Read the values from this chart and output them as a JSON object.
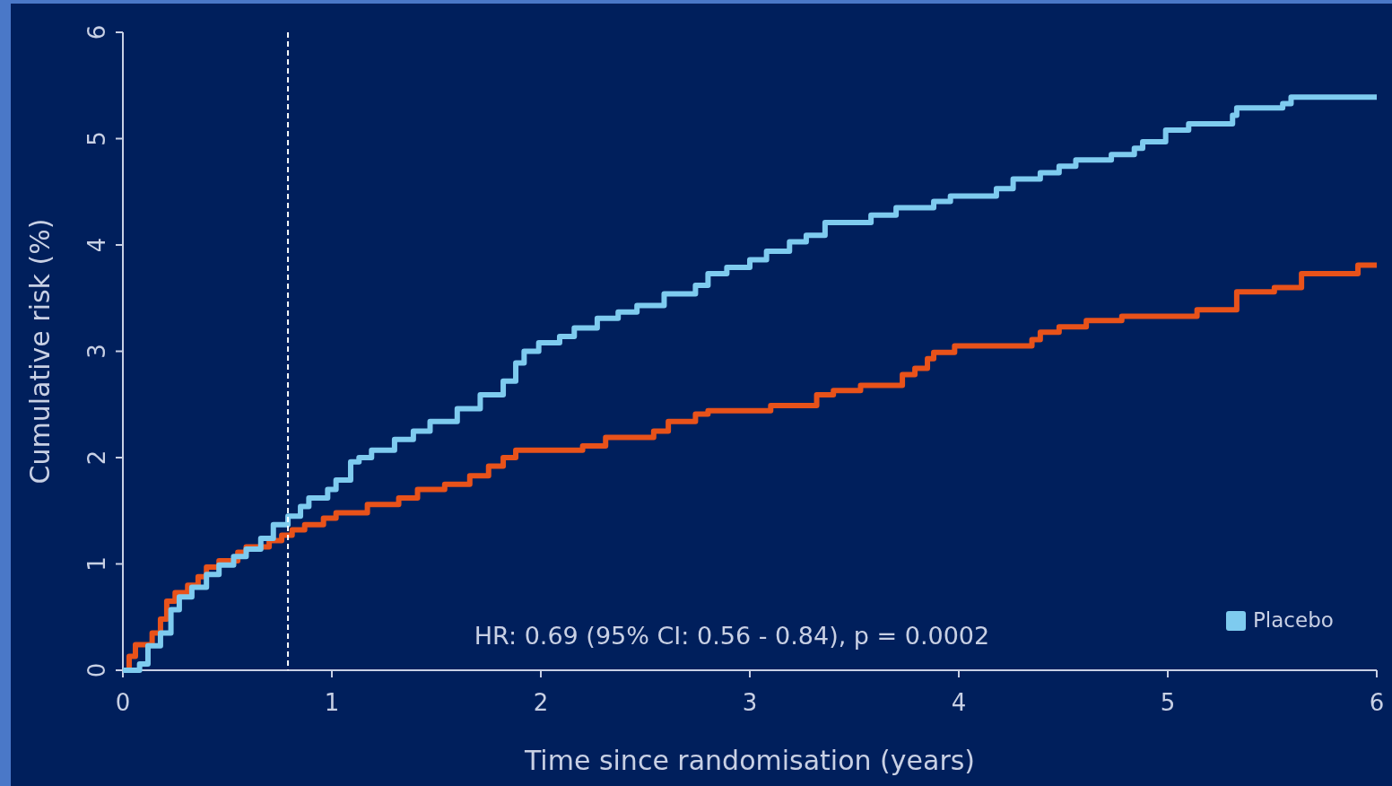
{
  "chart_data": {
    "type": "step",
    "xlabel": "Time since randomisation (years)",
    "ylabel": "Cumulative risk (%)",
    "xlim": [
      0,
      6
    ],
    "ylim": [
      0,
      6
    ],
    "xticks": [
      0,
      1,
      2,
      3,
      4,
      5,
      6
    ],
    "yticks": [
      0,
      1,
      2,
      3,
      4,
      5,
      6
    ],
    "grid": false,
    "legend": "bottom right",
    "line_style": "solid",
    "marker": "none",
    "annotations": [
      "HR: 0.69 (95% CI: 0.56 - 0.84), p = 0.0002"
    ],
    "ref_lines": [
      {
        "axis": "x",
        "value": 0.79,
        "label": null,
        "color": "#ffffff",
        "line_style": "dashed"
      }
    ],
    "series": [
      {
        "color": "#e8521a",
        "x": [
          0,
          0.03,
          0.06,
          0.14,
          0.18,
          0.21,
          0.25,
          0.31,
          0.36,
          0.4,
          0.46,
          0.55,
          0.59,
          0.7,
          0.76,
          0.81,
          0.87,
          0.96,
          1.02,
          1.17,
          1.32,
          1.41,
          1.54,
          1.66,
          1.75,
          1.82,
          1.88,
          2.2,
          2.31,
          2.54,
          2.61,
          2.74,
          2.8,
          3.1,
          3.32,
          3.4,
          3.53,
          3.73,
          3.79,
          3.85,
          3.88,
          3.98,
          4.35,
          4.39,
          4.48,
          4.61,
          4.78,
          5.14,
          5.33,
          5.51,
          5.64,
          5.91,
          6.0
        ],
        "values": [
          0,
          0.13,
          0.24,
          0.35,
          0.48,
          0.65,
          0.73,
          0.8,
          0.88,
          0.97,
          1.03,
          1.11,
          1.16,
          1.22,
          1.27,
          1.32,
          1.37,
          1.43,
          1.48,
          1.56,
          1.62,
          1.7,
          1.75,
          1.83,
          1.92,
          2.0,
          2.07,
          2.11,
          2.19,
          2.25,
          2.34,
          2.41,
          2.44,
          2.49,
          2.59,
          2.63,
          2.68,
          2.78,
          2.84,
          2.93,
          2.99,
          3.05,
          3.11,
          3.18,
          3.23,
          3.29,
          3.33,
          3.39,
          3.56,
          3.6,
          3.73,
          3.81,
          3.81
        ]
      },
      {
        "name": "Placebo",
        "color": "#7ecbef",
        "x": [
          0,
          0.08,
          0.12,
          0.18,
          0.23,
          0.27,
          0.33,
          0.4,
          0.46,
          0.53,
          0.59,
          0.66,
          0.72,
          0.79,
          0.85,
          0.89,
          0.98,
          1.02,
          1.09,
          1.13,
          1.19,
          1.3,
          1.39,
          1.47,
          1.6,
          1.71,
          1.82,
          1.88,
          1.92,
          1.99,
          2.09,
          2.16,
          2.27,
          2.37,
          2.46,
          2.59,
          2.74,
          2.8,
          2.89,
          3.0,
          3.08,
          3.19,
          3.27,
          3.36,
          3.58,
          3.7,
          3.88,
          3.96,
          4.18,
          4.26,
          4.39,
          4.48,
          4.56,
          4.73,
          4.84,
          4.88,
          4.99,
          5.1,
          5.31,
          5.33,
          5.55,
          5.59,
          6.0
        ],
        "values": [
          0,
          0.06,
          0.23,
          0.35,
          0.57,
          0.69,
          0.78,
          0.9,
          0.99,
          1.07,
          1.14,
          1.24,
          1.37,
          1.45,
          1.54,
          1.62,
          1.7,
          1.79,
          1.96,
          2.0,
          2.07,
          2.17,
          2.25,
          2.34,
          2.46,
          2.59,
          2.72,
          2.89,
          3.0,
          3.08,
          3.14,
          3.22,
          3.31,
          3.37,
          3.43,
          3.54,
          3.62,
          3.73,
          3.79,
          3.86,
          3.94,
          4.03,
          4.09,
          4.21,
          4.28,
          4.35,
          4.41,
          4.46,
          4.53,
          4.62,
          4.68,
          4.74,
          4.8,
          4.85,
          4.91,
          4.97,
          5.08,
          5.14,
          5.22,
          5.29,
          5.33,
          5.39,
          5.39
        ]
      }
    ]
  }
}
